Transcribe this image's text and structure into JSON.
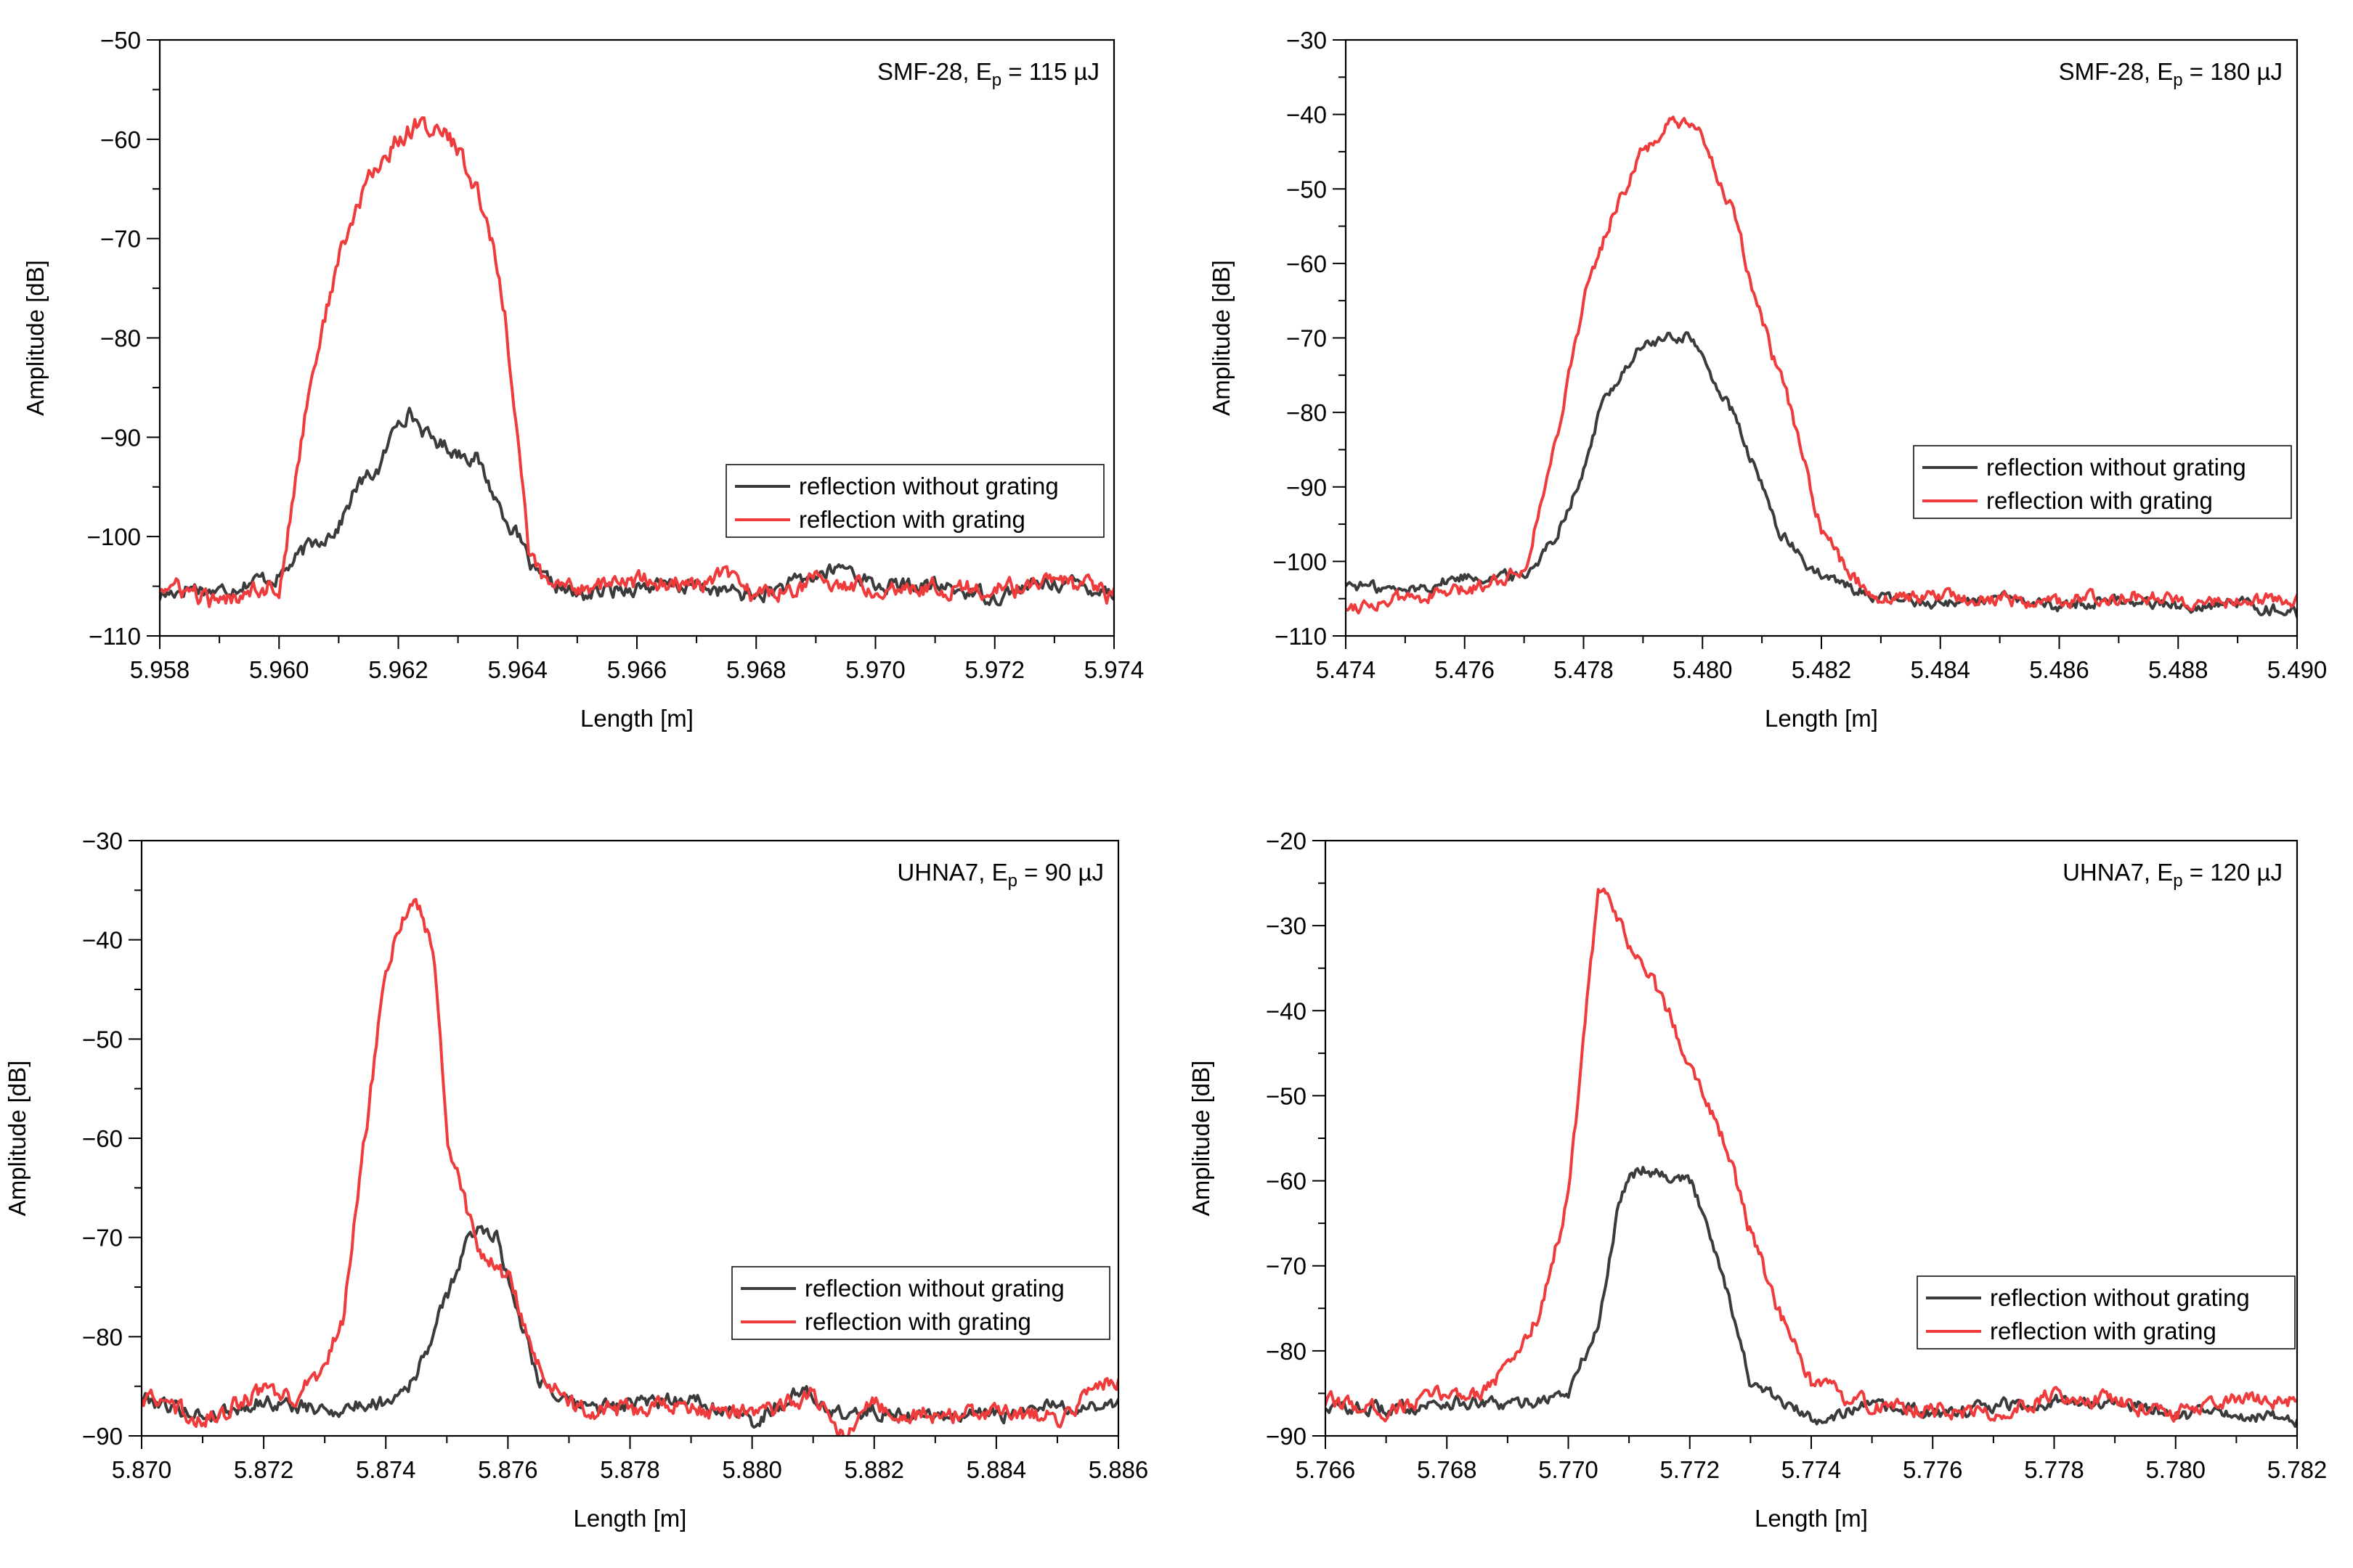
{
  "colors": {
    "without": "#3b3b3b",
    "with": "#ef3b3b"
  },
  "chart_data": [
    {
      "type": "line",
      "annotation": {
        "main": "SMF-28, E",
        "sub": "p",
        "rest": " = 115 µJ"
      },
      "xlabel": "Length [m]",
      "ylabel": "Amplitude [dB]",
      "xlim": [
        5.958,
        5.974
      ],
      "ylim": [
        -110,
        -50
      ],
      "xticks": [
        "5.958",
        "5.960",
        "5.962",
        "5.964",
        "5.966",
        "5.968",
        "5.970",
        "5.972",
        "5.974"
      ],
      "yticks": [
        "−50",
        "−60",
        "−70",
        "−80",
        "−90",
        "−100",
        "−110"
      ],
      "legend": [
        "reflection without grating",
        "reflection with grating"
      ],
      "series": [
        {
          "name": "reflection without grating",
          "color": "#3b3b3b",
          "x": [
            5.958,
            5.9585,
            5.959,
            5.9595,
            5.96,
            5.9605,
            5.961,
            5.9613,
            5.9617,
            5.962,
            5.9622,
            5.9625,
            5.963,
            5.9633,
            5.9637,
            5.964,
            5.9643,
            5.965,
            5.966,
            5.967,
            5.968,
            5.969,
            5.9695,
            5.97,
            5.971,
            5.972,
            5.973,
            5.974
          ],
          "y": [
            -106,
            -105,
            -105.5,
            -104.5,
            -104,
            -101,
            -99,
            -95,
            -93,
            -88,
            -87.5,
            -90,
            -91.5,
            -92,
            -97,
            -100,
            -104,
            -106,
            -105,
            -105,
            -106,
            -104,
            -103,
            -105,
            -105,
            -106,
            -104.5,
            -105.5
          ]
        },
        {
          "name": "reflection with grating",
          "color": "#ef3b3b",
          "x": [
            5.958,
            5.9585,
            5.959,
            5.9595,
            5.96,
            5.9601,
            5.9605,
            5.961,
            5.9615,
            5.962,
            5.9623,
            5.9627,
            5.963,
            5.9635,
            5.9638,
            5.964,
            5.9642,
            5.9645,
            5.965,
            5.966,
            5.967,
            5.9675,
            5.968,
            5.969,
            5.97,
            5.971,
            5.972,
            5.973,
            5.974
          ],
          "y": [
            -105,
            -105.5,
            -107,
            -105,
            -105,
            -102,
            -85,
            -72,
            -64,
            -60,
            -58.5,
            -59,
            -61,
            -68,
            -78,
            -90,
            -102,
            -105,
            -105,
            -104.5,
            -105,
            -104,
            -106,
            -104.5,
            -105,
            -105,
            -105.5,
            -104.5,
            -106
          ]
        }
      ]
    },
    {
      "type": "line",
      "annotation": {
        "main": "SMF-28, E",
        "sub": "p",
        "rest": " = 180 µJ"
      },
      "xlabel": "Length [m]",
      "ylabel": "Amplitude [dB]",
      "xlim": [
        5.474,
        5.49
      ],
      "ylim": [
        -110,
        -30
      ],
      "xticks": [
        "5.474",
        "5.476",
        "5.478",
        "5.480",
        "5.482",
        "5.484",
        "5.486",
        "5.488",
        "5.490"
      ],
      "yticks": [
        "−30",
        "−40",
        "−50",
        "−60",
        "−70",
        "−80",
        "−90",
        "−100",
        "−110"
      ],
      "legend": [
        "reflection without grating",
        "reflection with grating"
      ],
      "series": [
        {
          "name": "reflection without grating",
          "color": "#3b3b3b",
          "x": [
            5.474,
            5.475,
            5.476,
            5.477,
            5.4775,
            5.478,
            5.4783,
            5.4787,
            5.479,
            5.4795,
            5.4798,
            5.48,
            5.4805,
            5.481,
            5.4813,
            5.4817,
            5.482,
            5.483,
            5.484,
            5.485,
            5.486,
            5.487,
            5.488,
            5.489,
            5.49
          ],
          "y": [
            -103,
            -104,
            -102,
            -102,
            -97,
            -88,
            -79,
            -74,
            -71,
            -70,
            -69.5,
            -73,
            -80,
            -90,
            -96,
            -100,
            -102,
            -105,
            -105.5,
            -105,
            -106,
            -105,
            -106,
            -105.5,
            -107
          ]
        },
        {
          "name": "reflection with grating",
          "color": "#ef3b3b",
          "x": [
            5.474,
            5.475,
            5.476,
            5.477,
            5.4772,
            5.4775,
            5.478,
            5.4785,
            5.479,
            5.4795,
            5.48,
            5.4805,
            5.481,
            5.4815,
            5.482,
            5.4825,
            5.483,
            5.484,
            5.485,
            5.486,
            5.487,
            5.488,
            5.489,
            5.49
          ],
          "y": [
            -106,
            -105,
            -104,
            -101,
            -95,
            -85,
            -65,
            -53,
            -45,
            -41,
            -43,
            -53,
            -68,
            -80,
            -96,
            -102,
            -105,
            -104.5,
            -105,
            -105.5,
            -104.5,
            -105,
            -105.5,
            -105
          ]
        }
      ]
    },
    {
      "type": "line",
      "annotation": {
        "main": "UHNA7, E",
        "sub": "p",
        "rest": " = 90 µJ"
      },
      "xlabel": "Length [m]",
      "ylabel": "Amplitude [dB]",
      "xlim": [
        5.87,
        5.886
      ],
      "ylim": [
        -90,
        -30
      ],
      "xticks": [
        "5.870",
        "5.872",
        "5.874",
        "5.876",
        "5.878",
        "5.880",
        "5.882",
        "5.884",
        "5.886"
      ],
      "yticks": [
        "−30",
        "−40",
        "−50",
        "−60",
        "−70",
        "−80",
        "−90"
      ],
      "legend": [
        "reflection without grating",
        "reflection with grating"
      ],
      "series": [
        {
          "name": "reflection without grating",
          "color": "#3b3b3b",
          "x": [
            5.87,
            5.871,
            5.872,
            5.873,
            5.874,
            5.8745,
            5.875,
            5.8753,
            5.8755,
            5.8758,
            5.876,
            5.8765,
            5.877,
            5.878,
            5.879,
            5.88,
            5.8808,
            5.8815,
            5.882,
            5.883,
            5.884,
            5.885,
            5.886
          ],
          "y": [
            -86,
            -88,
            -86.5,
            -87.5,
            -86.5,
            -84,
            -76,
            -71,
            -69,
            -69.5,
            -74,
            -84,
            -87,
            -87,
            -86,
            -88.5,
            -85.5,
            -88,
            -87.5,
            -88,
            -88,
            -87,
            -87
          ]
        },
        {
          "name": "reflection with grating",
          "color": "#ef3b3b",
          "x": [
            5.87,
            5.871,
            5.872,
            5.8725,
            5.873,
            5.8733,
            5.8737,
            5.874,
            5.8743,
            5.8745,
            5.8748,
            5.875,
            5.8755,
            5.876,
            5.8765,
            5.877,
            5.878,
            5.879,
            5.88,
            5.881,
            5.8815,
            5.882,
            5.883,
            5.884,
            5.885,
            5.886
          ],
          "y": [
            -86,
            -88.5,
            -85.5,
            -86.5,
            -83,
            -78,
            -58,
            -43,
            -37,
            -36,
            -42,
            -60,
            -71,
            -74,
            -83,
            -87,
            -87.5,
            -87,
            -88,
            -86,
            -90,
            -87,
            -88,
            -88,
            -88,
            -84
          ]
        }
      ]
    },
    {
      "type": "line",
      "annotation": {
        "main": "UHNA7, E",
        "sub": "p",
        "rest": " = 120 µJ"
      },
      "xlabel": "Length [m]",
      "ylabel": "Amplitude [dB]",
      "xlim": [
        5.766,
        5.782
      ],
      "ylim": [
        -90,
        -20
      ],
      "xticks": [
        "5.766",
        "5.768",
        "5.770",
        "5.772",
        "5.774",
        "5.776",
        "5.778",
        "5.780",
        "5.782"
      ],
      "yticks": [
        "−20",
        "−30",
        "−40",
        "−50",
        "−60",
        "−70",
        "−80",
        "−90"
      ],
      "legend": [
        "reflection without grating",
        "reflection with grating"
      ],
      "series": [
        {
          "name": "reflection without grating",
          "color": "#3b3b3b",
          "x": [
            5.766,
            5.767,
            5.768,
            5.769,
            5.77,
            5.7705,
            5.7708,
            5.771,
            5.7713,
            5.7715,
            5.772,
            5.7723,
            5.7727,
            5.773,
            5.774,
            5.775,
            5.776,
            5.777,
            5.778,
            5.779,
            5.78,
            5.781,
            5.782
          ],
          "y": [
            -86.5,
            -87,
            -86,
            -86.5,
            -85,
            -77,
            -64,
            -59,
            -58.5,
            -59,
            -60,
            -65,
            -75,
            -84,
            -88,
            -86.5,
            -87.5,
            -86.5,
            -86,
            -86,
            -87.5,
            -87.5,
            -88
          ]
        },
        {
          "name": "reflection with grating",
          "color": "#ef3b3b",
          "x": [
            5.766,
            5.767,
            5.768,
            5.7685,
            5.769,
            5.7695,
            5.77,
            5.7703,
            5.7705,
            5.7707,
            5.771,
            5.7715,
            5.772,
            5.7725,
            5.773,
            5.7735,
            5.774,
            5.775,
            5.776,
            5.777,
            5.778,
            5.779,
            5.78,
            5.781,
            5.782
          ],
          "y": [
            -86,
            -87,
            -85,
            -85,
            -82,
            -76,
            -62,
            -40,
            -25.5,
            -28,
            -32,
            -38,
            -46,
            -54,
            -66,
            -76,
            -84,
            -86.5,
            -87,
            -87.5,
            -85,
            -86,
            -87.5,
            -86,
            -86
          ]
        }
      ]
    }
  ]
}
